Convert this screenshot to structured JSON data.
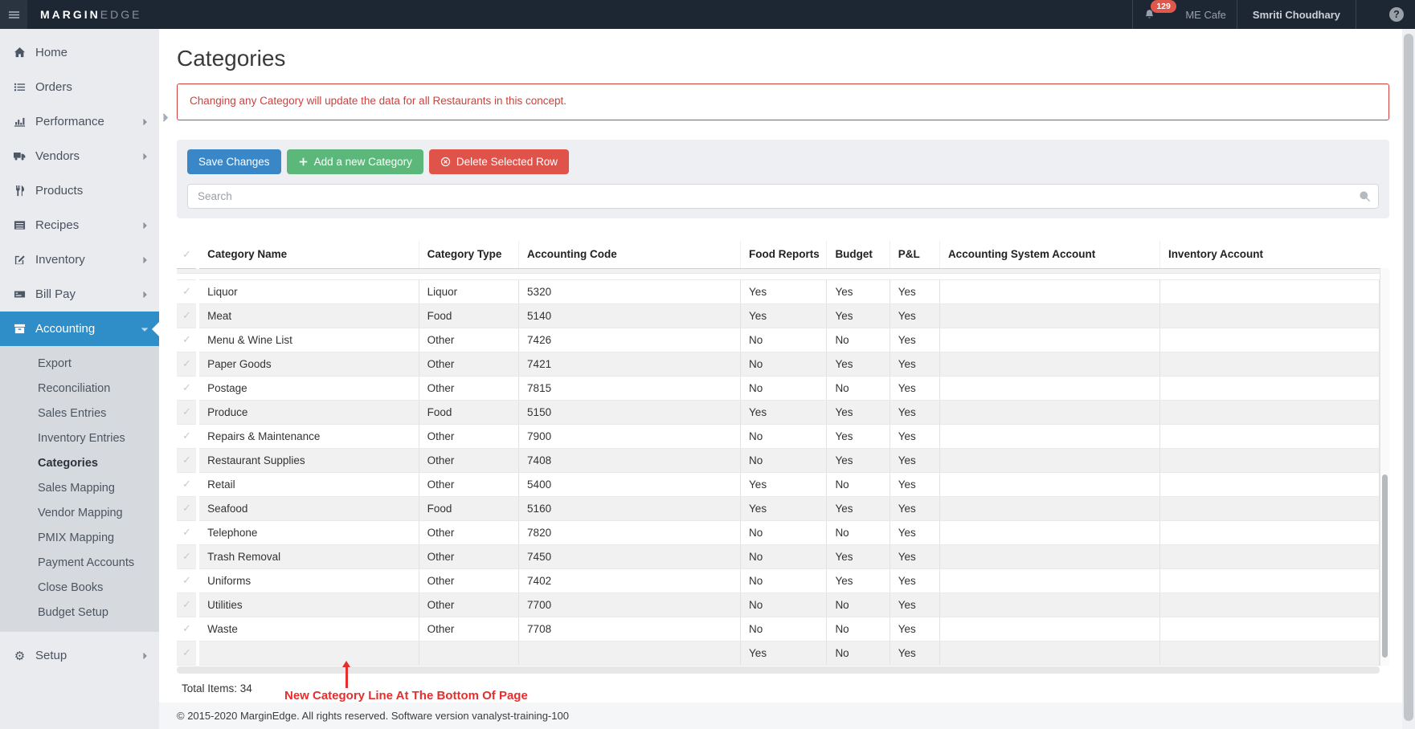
{
  "topbar": {
    "brand_bold": "MARGIN",
    "brand_light": "EDGE",
    "notification_count": "129",
    "restaurant": "ME Cafe",
    "user": "Smriti Choudhary",
    "help": "?"
  },
  "sidebar": {
    "items": [
      {
        "icon": "home-icon",
        "label": "Home",
        "chevron": ""
      },
      {
        "icon": "orders-icon",
        "label": "Orders",
        "chevron": ""
      },
      {
        "icon": "performance-icon",
        "label": "Performance",
        "chevron": "chevron-right-icon"
      },
      {
        "icon": "vendors-icon",
        "label": "Vendors",
        "chevron": "chevron-right-icon"
      },
      {
        "icon": "products-icon",
        "label": "Products",
        "chevron": ""
      },
      {
        "icon": "recipes-icon",
        "label": "Recipes",
        "chevron": "chevron-right-icon"
      },
      {
        "icon": "inventory-icon",
        "label": "Inventory",
        "chevron": "chevron-right-icon"
      },
      {
        "icon": "billpay-icon",
        "label": "Bill Pay",
        "chevron": "chevron-right-icon"
      },
      {
        "icon": "accounting-icon",
        "label": "Accounting",
        "chevron": "chevron-down-icon",
        "class": "active"
      }
    ],
    "submenu": [
      {
        "label": "Export"
      },
      {
        "label": "Reconciliation"
      },
      {
        "label": "Sales Entries"
      },
      {
        "label": "Inventory Entries"
      },
      {
        "label": "Categories",
        "class": "active"
      },
      {
        "label": "Sales Mapping"
      },
      {
        "label": "Vendor Mapping"
      },
      {
        "label": "PMIX Mapping"
      },
      {
        "label": "Payment Accounts"
      },
      {
        "label": "Close Books"
      },
      {
        "label": "Budget Setup"
      }
    ],
    "setup": {
      "label": "Setup"
    }
  },
  "page": {
    "title": "Categories",
    "alert": "Changing any Category will update the data for all Restaurants in this concept.",
    "buttons": {
      "save": "Save Changes",
      "add": "Add a new Category",
      "delete": "Delete Selected Row"
    },
    "search_placeholder": "Search",
    "total_items": "Total Items: 34",
    "annotation": "New Category Line At The Bottom Of Page"
  },
  "table": {
    "headers": [
      "Category Name",
      "Category Type",
      "Accounting Code",
      "Food Reports",
      "Budget",
      "P&L",
      "Accounting System Account",
      "Inventory Account"
    ],
    "rows": [
      {
        "name": "Liquor",
        "type": "Liquor",
        "code": "5320",
        "food": "Yes",
        "budget": "Yes",
        "pl": "Yes",
        "asa": "",
        "inv": ""
      },
      {
        "name": "Meat",
        "type": "Food",
        "code": "5140",
        "food": "Yes",
        "budget": "Yes",
        "pl": "Yes",
        "asa": "",
        "inv": ""
      },
      {
        "name": "Menu & Wine List",
        "type": "Other",
        "code": "7426",
        "food": "No",
        "budget": "No",
        "pl": "Yes",
        "asa": "",
        "inv": ""
      },
      {
        "name": "Paper Goods",
        "type": "Other",
        "code": "7421",
        "food": "No",
        "budget": "Yes",
        "pl": "Yes",
        "asa": "",
        "inv": ""
      },
      {
        "name": "Postage",
        "type": "Other",
        "code": "7815",
        "food": "No",
        "budget": "No",
        "pl": "Yes",
        "asa": "",
        "inv": ""
      },
      {
        "name": "Produce",
        "type": "Food",
        "code": "5150",
        "food": "Yes",
        "budget": "Yes",
        "pl": "Yes",
        "asa": "",
        "inv": ""
      },
      {
        "name": "Repairs & Maintenance",
        "type": "Other",
        "code": "7900",
        "food": "No",
        "budget": "Yes",
        "pl": "Yes",
        "asa": "",
        "inv": ""
      },
      {
        "name": "Restaurant Supplies",
        "type": "Other",
        "code": "7408",
        "food": "No",
        "budget": "Yes",
        "pl": "Yes",
        "asa": "",
        "inv": ""
      },
      {
        "name": "Retail",
        "type": "Other",
        "code": "5400",
        "food": "Yes",
        "budget": "No",
        "pl": "Yes",
        "asa": "",
        "inv": ""
      },
      {
        "name": "Seafood",
        "type": "Food",
        "code": "5160",
        "food": "Yes",
        "budget": "Yes",
        "pl": "Yes",
        "asa": "",
        "inv": ""
      },
      {
        "name": "Telephone",
        "type": "Other",
        "code": "7820",
        "food": "No",
        "budget": "No",
        "pl": "Yes",
        "asa": "",
        "inv": ""
      },
      {
        "name": "Trash Removal",
        "type": "Other",
        "code": "7450",
        "food": "No",
        "budget": "Yes",
        "pl": "Yes",
        "asa": "",
        "inv": ""
      },
      {
        "name": "Uniforms",
        "type": "Other",
        "code": "7402",
        "food": "No",
        "budget": "Yes",
        "pl": "Yes",
        "asa": "",
        "inv": ""
      },
      {
        "name": "Utilities",
        "type": "Other",
        "code": "7700",
        "food": "No",
        "budget": "No",
        "pl": "Yes",
        "asa": "",
        "inv": ""
      },
      {
        "name": "Waste",
        "type": "Other",
        "code": "7708",
        "food": "No",
        "budget": "No",
        "pl": "Yes",
        "asa": "",
        "inv": ""
      },
      {
        "name": "",
        "type": "",
        "code": "",
        "food": "Yes",
        "budget": "No",
        "pl": "Yes",
        "asa": "",
        "inv": ""
      }
    ]
  },
  "footer": "© 2015-2020 MarginEdge. All rights reserved. Software version vanalyst-training-100",
  "colors": {
    "topbar_bg": "#1d2633",
    "sidebar_bg": "#e9ebee",
    "active_nav": "#2f8dc8",
    "button_blue": "#3a87c8",
    "button_green": "#5cb87a",
    "button_red": "#e0534a",
    "alert_red": "#d0403c",
    "annotation_red": "#e62e2e",
    "badge_red": "#e2574c"
  }
}
